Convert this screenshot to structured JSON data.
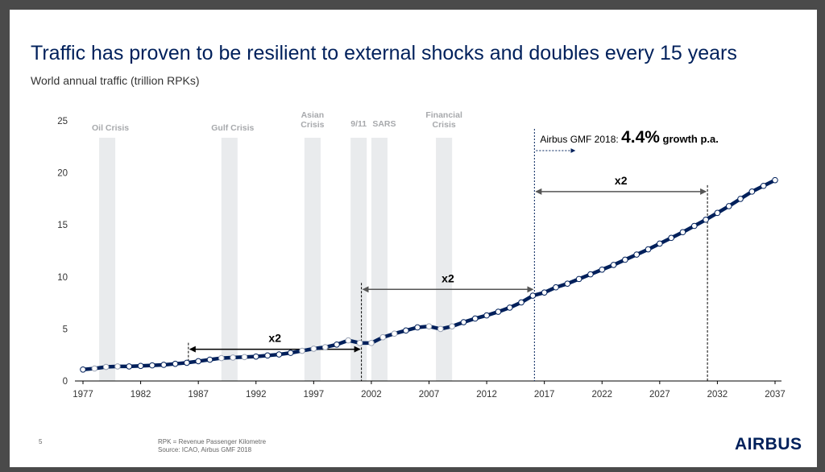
{
  "slide": {
    "title": "Traffic has proven to be resilient to external shocks and doubles every 15 years",
    "subtitle": "World annual traffic (trillion RPKs)",
    "page_number": "5",
    "footnote_1": "RPK = Revenue Passenger Kilometre",
    "footnote_2": "Source: ICAO, Airbus GMF 2018",
    "logo_text": "AIRBUS"
  },
  "colors": {
    "navy": "#00205b",
    "crisis_band": "#e9ebed",
    "crisis_label": "#a7a9ac",
    "axis": "#000000"
  },
  "chart_data": {
    "type": "line",
    "title": "Traffic has proven to be resilient to external shocks and doubles every 15 years",
    "ylabel": "World annual traffic (trillion RPKs)",
    "xlabel": "",
    "xlim": [
      1977,
      2037
    ],
    "ylim": [
      0,
      25
    ],
    "x_ticks": [
      1977,
      1982,
      1987,
      1992,
      1997,
      2002,
      2007,
      2012,
      2017,
      2022,
      2027,
      2032,
      2037
    ],
    "y_ticks": [
      0,
      5,
      10,
      15,
      20,
      25
    ],
    "grid": false,
    "series": [
      {
        "x": [
          1977,
          1978,
          1979,
          1980,
          1981,
          1982,
          1983,
          1984,
          1985,
          1986,
          1987,
          1988,
          1989,
          1990,
          1991,
          1992,
          1993,
          1994,
          1995,
          1996,
          1997,
          1998,
          1999,
          2000,
          2001,
          2002,
          2003,
          2004,
          2005,
          2006,
          2007,
          2008,
          2009,
          2010,
          2011,
          2012,
          2013,
          2014,
          2015,
          2016,
          2017,
          2018,
          2019,
          2020,
          2021,
          2022,
          2023,
          2024,
          2025,
          2026,
          2027,
          2028,
          2029,
          2030,
          2031,
          2032,
          2033,
          2034,
          2035,
          2036,
          2037
        ],
        "values": [
          1.1,
          1.2,
          1.35,
          1.4,
          1.4,
          1.45,
          1.5,
          1.55,
          1.65,
          1.75,
          1.9,
          2.05,
          2.2,
          2.25,
          2.3,
          2.35,
          2.45,
          2.55,
          2.7,
          2.9,
          3.1,
          3.25,
          3.5,
          3.9,
          3.65,
          3.65,
          4.2,
          4.55,
          4.85,
          5.15,
          5.25,
          5.0,
          5.25,
          5.65,
          6.0,
          6.3,
          6.65,
          7.05,
          7.55,
          8.2,
          8.5,
          9.0,
          9.35,
          9.8,
          10.25,
          10.7,
          11.15,
          11.65,
          12.15,
          12.65,
          13.2,
          13.75,
          14.3,
          14.9,
          15.5,
          16.15,
          16.8,
          17.5,
          18.2,
          18.75,
          19.3
        ]
      }
    ],
    "crisis_periods": [
      {
        "label": "Oil Crisis",
        "start": 1978.4,
        "end": 1979.8
      },
      {
        "label": "Gulf Crisis",
        "start": 1989.0,
        "end": 1990.4
      },
      {
        "label": "Asian Crisis",
        "start": 1996.2,
        "end": 1997.6
      },
      {
        "label": "9/11",
        "start": 2000.2,
        "end": 2001.6
      },
      {
        "label": "SARS",
        "start": 2002.0,
        "end": 2003.4
      },
      {
        "label": "Financial Crisis",
        "start": 2007.6,
        "end": 2009.0
      }
    ],
    "doubling_spans": [
      {
        "label": "x2",
        "from": 1986,
        "to": 2001,
        "y": 4.6
      },
      {
        "label": "x2",
        "from": 2001,
        "to": 2016,
        "y": 8.8
      },
      {
        "label": "x2",
        "from": 2016,
        "to": 2031,
        "y": 18.2
      }
    ],
    "forecast": {
      "start": 2016,
      "label_prefix": "Airbus GMF 2018:",
      "value": "4.4%",
      "label_suffix": "growth p.a."
    }
  }
}
